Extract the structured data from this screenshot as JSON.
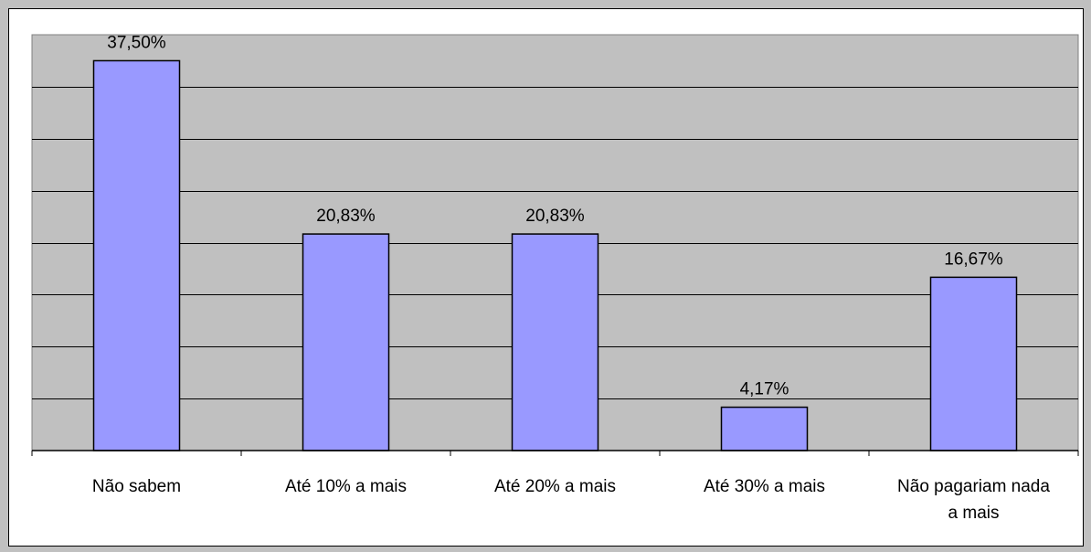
{
  "chart_data": {
    "type": "bar",
    "categories": [
      "Não sabem",
      "Até 10% a mais",
      "Até 20% a mais",
      "Até 30% a mais",
      "Não pagariam nada a mais"
    ],
    "category_lines": [
      [
        "Não sabem"
      ],
      [
        "Até 10% a mais"
      ],
      [
        "Até 20% a mais"
      ],
      [
        "Até 30% a mais"
      ],
      [
        "Não pagariam nada",
        "a mais"
      ]
    ],
    "values": [
      37.5,
      20.83,
      20.83,
      4.17,
      16.67
    ],
    "data_labels": [
      "37,50%",
      "20,83%",
      "20,83%",
      "4,17%",
      "16,67%"
    ],
    "ylim": [
      0,
      40
    ],
    "grid": true,
    "legend": "none",
    "colors": {
      "bar_fill": "#9999ff",
      "plot_background": "#c0c0c0",
      "chart_background": "#ffffff",
      "outer_background": "#c0c0c0"
    }
  }
}
